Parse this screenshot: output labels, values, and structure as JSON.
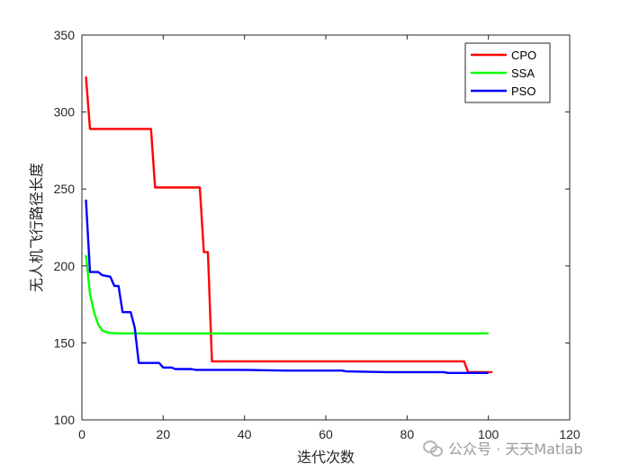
{
  "chart_data": {
    "type": "line",
    "xlabel": "迭代次数",
    "ylabel": "无人机飞行路径长度",
    "xlim": [
      0,
      120
    ],
    "ylim": [
      100,
      350
    ],
    "xticks": [
      "0",
      "20",
      "40",
      "60",
      "80",
      "100",
      "120"
    ],
    "yticks": [
      "100",
      "150",
      "200",
      "250",
      "300",
      "350"
    ],
    "grid": false,
    "legend": "top-right",
    "series": [
      {
        "name": "CPO",
        "color": "#ff0000",
        "x": [
          1,
          2,
          17,
          18,
          29,
          30,
          31,
          32,
          94,
          95,
          101
        ],
        "y": [
          323,
          289,
          289,
          251,
          251,
          209,
          209,
          138,
          138,
          131,
          131
        ]
      },
      {
        "name": "SSA",
        "color": "#00ff00",
        "x": [
          1,
          2,
          3,
          4,
          5,
          6,
          7,
          8,
          10,
          100
        ],
        "y": [
          207,
          182,
          170,
          162,
          158,
          157,
          156.5,
          156.3,
          156.2,
          156.2
        ]
      },
      {
        "name": "PSO",
        "color": "#0000ff",
        "x": [
          1,
          2,
          4,
          5,
          7,
          8,
          9,
          10,
          11,
          12,
          13,
          14,
          19,
          20,
          22,
          23,
          27,
          28,
          40,
          50,
          64,
          65,
          75,
          89,
          90,
          100
        ],
        "y": [
          243,
          196,
          196,
          194,
          193,
          187,
          187,
          170,
          170,
          170,
          160,
          137,
          137,
          134,
          134,
          133,
          133,
          132.5,
          132.5,
          132,
          132,
          131.5,
          131,
          131,
          130.5,
          130.5
        ]
      }
    ]
  },
  "watermark": {
    "text": "公众号 · 天天Matlab"
  }
}
